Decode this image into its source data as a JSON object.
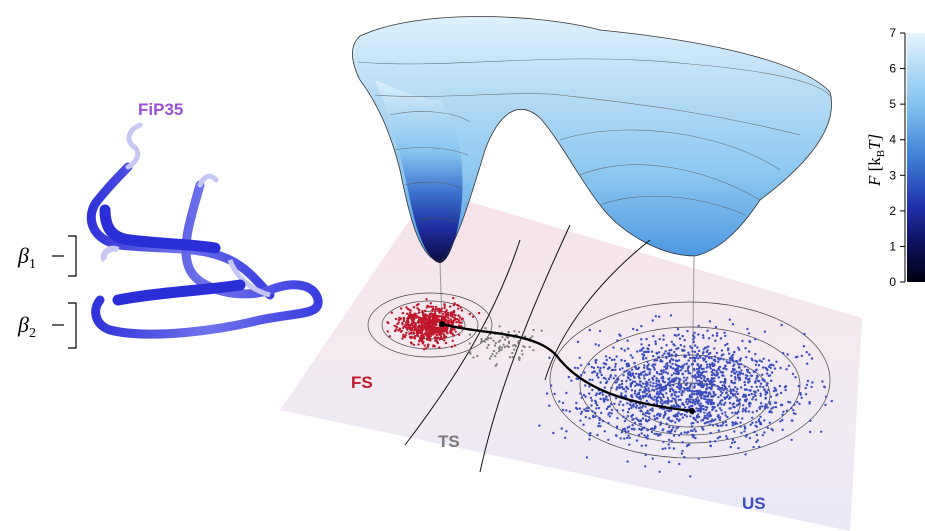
{
  "protein": {
    "name": "FiP35",
    "strand1": "β",
    "strand1_sub": "1",
    "strand2": "β",
    "strand2_sub": "2"
  },
  "states": {
    "folded": "FS",
    "transition": "TS",
    "unfolded": "US"
  },
  "colorbar": {
    "label_italic_F": "F",
    "label_rest": "[k",
    "label_sub": "B",
    "label_T": "T]",
    "ticks": [
      "0",
      "1",
      "2",
      "3",
      "4",
      "5",
      "6",
      "7"
    ],
    "range": [
      0,
      7
    ]
  },
  "colors": {
    "protein_label": "#9b4fd6",
    "folded": "#c0172b",
    "transition": "#7a7a7a",
    "unfolded": "#3a4cc0",
    "ribbon": "#4a4fe0"
  }
}
